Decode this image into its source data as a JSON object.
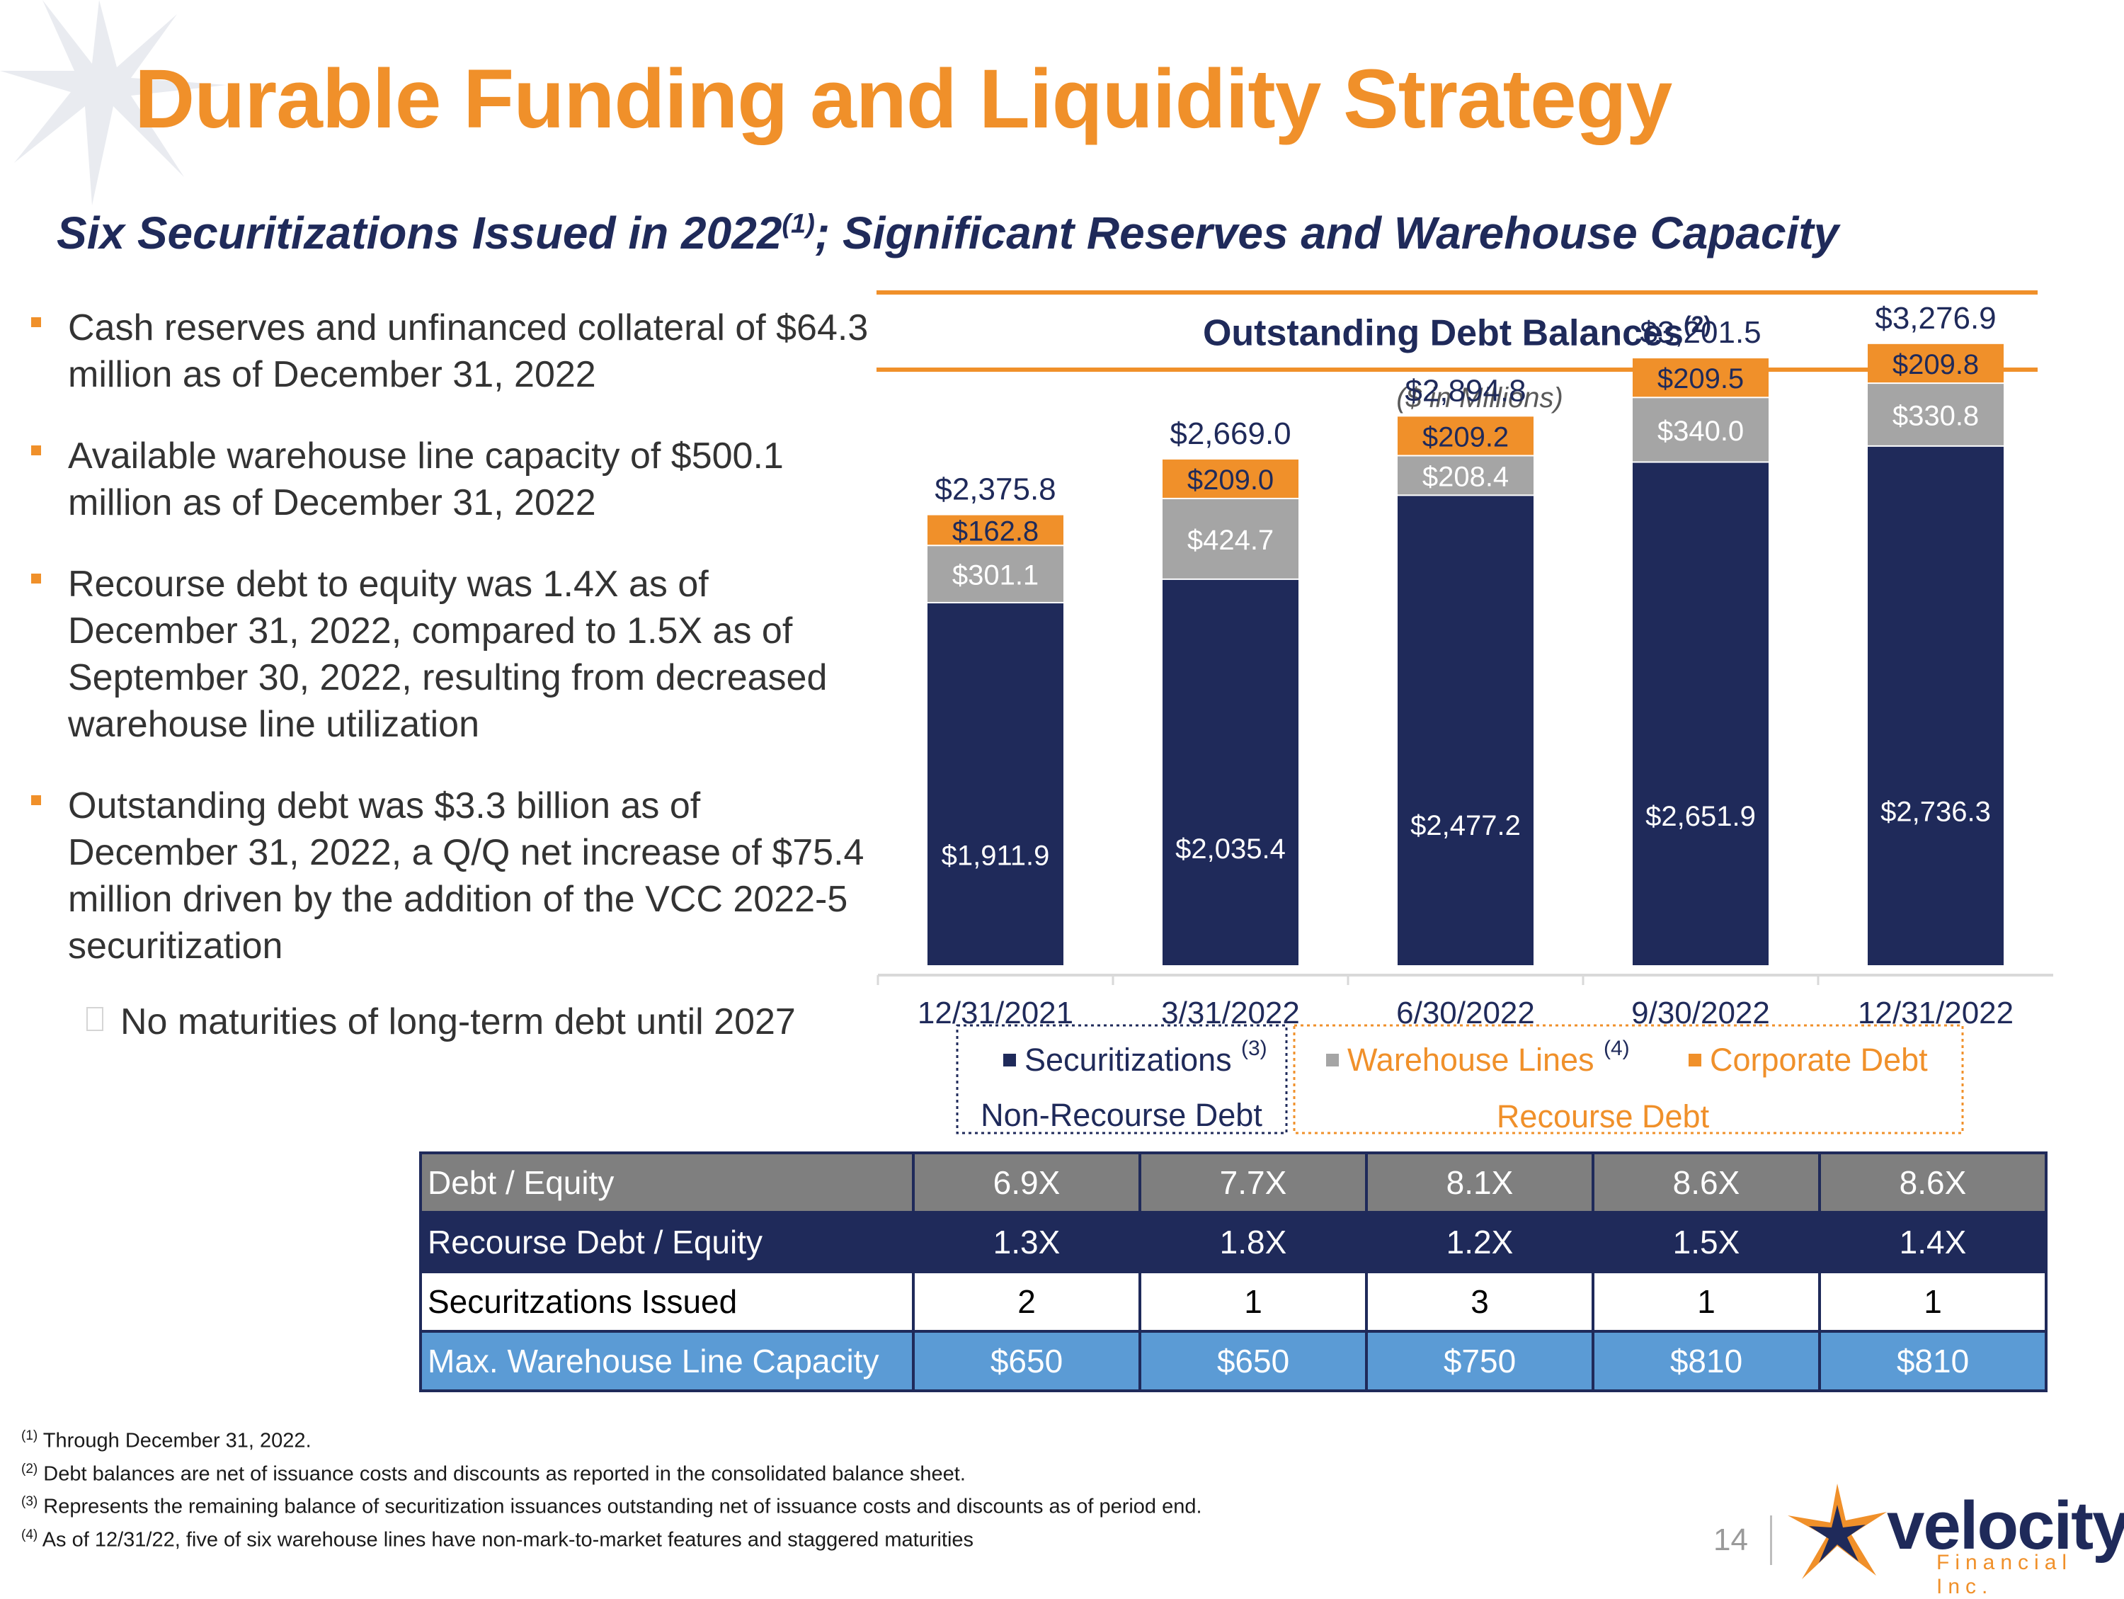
{
  "title": "Durable Funding and Liquidity Strategy",
  "subtitle": {
    "text": "Six Securitizations Issued in 2022",
    "sup": "(1)",
    "rest": "; Significant Reserves and Warehouse Capacity"
  },
  "bullets": [
    "Cash reserves and unfinanced collateral of $64.3 million as of December 31, 2022",
    "Available warehouse line capacity of $500.1 million as of December 31, 2022",
    "Recourse debt to equity was 1.4X as of December 31, 2022, compared to 1.5X as of September 30, 2022, resulting from decreased warehouse line utilization",
    "Outstanding debt was $3.3 billion as of December 31, 2022, a Q/Q net increase of $75.4 million driven by the addition of the VCC 2022-5 securitization"
  ],
  "sub_bullet": "No maturities of long-term debt until 2027",
  "chart_header": {
    "title": "Outstanding Debt Balances",
    "sup": "(2)",
    "units": "($ in Millions)"
  },
  "chart_data": {
    "type": "bar",
    "stacked": true,
    "title": "Outstanding Debt Balances",
    "units": "($ in Millions)",
    "categories": [
      "12/31/2021",
      "3/31/2022",
      "6/30/2022",
      "9/30/2022",
      "12/31/2022"
    ],
    "series": [
      {
        "name": "Securitizations",
        "color": "#1f2a5a",
        "values": [
          1911.9,
          2035.4,
          2477.2,
          2651.9,
          2736.3
        ],
        "labels": [
          "$1,911.9",
          "$2,035.4",
          "$2,477.2",
          "$2,651.9",
          "$2,736.3"
        ]
      },
      {
        "name": "Warehouse Lines",
        "color": "#a5a5a5",
        "values": [
          301.1,
          424.7,
          208.4,
          340.0,
          330.8
        ],
        "labels": [
          "$301.1",
          "$424.7",
          "$208.4",
          "$340.0",
          "$330.8"
        ]
      },
      {
        "name": "Corporate Debt",
        "color": "#f0902a",
        "values": [
          162.8,
          209.0,
          209.2,
          209.5,
          209.8
        ],
        "labels": [
          "$162.8",
          "$209.0",
          "$209.2",
          "$209.5",
          "$209.8"
        ]
      }
    ],
    "totals": [
      2375.8,
      2669.0,
      2894.8,
      3201.5,
      3276.9
    ],
    "total_labels": [
      "$2,375.8",
      "$2,669.0",
      "$2,894.8",
      "$3,201.5",
      "$3,276.9"
    ],
    "ylim": [
      0,
      3500
    ],
    "legend": {
      "securitizations": {
        "label": "Securitizations",
        "sup": "(3)"
      },
      "warehouse": {
        "label": "Warehouse Lines",
        "sup": "(4)"
      },
      "corporate": {
        "label": "Corporate Debt"
      },
      "group_nonrecourse": "Non-Recourse Debt",
      "group_recourse": "Recourse Debt"
    }
  },
  "table": {
    "rows": [
      {
        "label": "Debt / Equity",
        "values": [
          "6.9X",
          "7.7X",
          "8.1X",
          "8.6X",
          "8.6X"
        ]
      },
      {
        "label": "Recourse Debt / Equity",
        "values": [
          "1.3X",
          "1.8X",
          "1.2X",
          "1.5X",
          "1.4X"
        ]
      },
      {
        "label": "Securitzations Issued",
        "values": [
          "2",
          "1",
          "3",
          "1",
          "1"
        ]
      },
      {
        "label": "Max. Warehouse Line Capacity",
        "values": [
          "$650",
          "$650",
          "$750",
          "$810",
          "$810"
        ]
      }
    ]
  },
  "footnotes": [
    {
      "sup": "(1)",
      "text": "Through December 31, 2022."
    },
    {
      "sup": "(2)",
      "text": "Debt balances are net of issuance costs and discounts as reported in the consolidated balance sheet."
    },
    {
      "sup": "(3)",
      "text": "Represents the remaining balance of securitization issuances outstanding net of issuance costs and discounts as of period end."
    },
    {
      "sup": "(4)",
      "text": "As of 12/31/22, five of six warehouse lines have non-mark-to-market features and staggered maturities"
    }
  ],
  "page_number": "14",
  "brand": {
    "name": "velocity",
    "tagline": "Financial Inc."
  }
}
